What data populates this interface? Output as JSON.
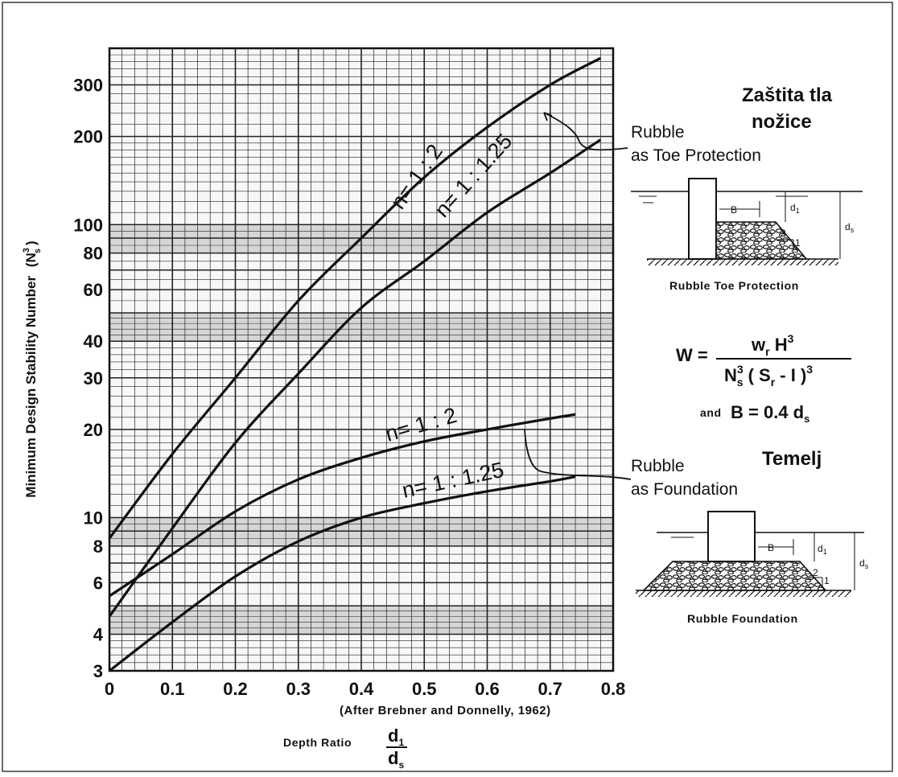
{
  "chart_data": {
    "type": "line",
    "title": "",
    "xlabel": "Depth Ratio",
    "xlabel_frac": {
      "num": "d",
      "num_sub": "1",
      "den": "d",
      "den_sub": "s"
    },
    "ylabel": "Minimum Design Stability Number",
    "ylabel_sym": {
      "base": "N",
      "sup": "3",
      "sub": "s"
    },
    "xlim": [
      0,
      0.8
    ],
    "ylim": [
      3,
      400
    ],
    "yscale": "log",
    "grid": true,
    "x_ticks": [
      "0",
      "0.1",
      "0.2",
      "0.3",
      "0.4",
      "0.5",
      "0.6",
      "0.7",
      "0.8"
    ],
    "y_ticks": [
      "3",
      "4",
      "6",
      "8",
      "10",
      "20",
      "30",
      "40",
      "60",
      "80",
      "100",
      "200",
      "300"
    ],
    "source_note": "(After Brebner and Donnelly, 1962)",
    "series": [
      {
        "name": "n= 1 : 2",
        "group": "Rubble as Toe Protection",
        "x": [
          0,
          0.1,
          0.2,
          0.3,
          0.4,
          0.5,
          0.6,
          0.7,
          0.78
        ],
        "y": [
          8.5,
          16.5,
          30,
          55,
          90,
          145,
          215,
          300,
          370
        ]
      },
      {
        "name": "n= 1 : 1.25",
        "group": "Rubble as Toe Protection",
        "x": [
          0,
          0.1,
          0.2,
          0.3,
          0.4,
          0.5,
          0.6,
          0.7,
          0.78
        ],
        "y": [
          4.6,
          9.2,
          18,
          31,
          52,
          75,
          110,
          150,
          195
        ]
      },
      {
        "name": "n= 1 : 2",
        "group": "Rubble as Foundation",
        "x": [
          0,
          0.1,
          0.2,
          0.3,
          0.4,
          0.5,
          0.6,
          0.7,
          0.74
        ],
        "y": [
          5.4,
          7.5,
          10.5,
          13.5,
          16,
          18.2,
          20,
          21.8,
          22.5
        ]
      },
      {
        "name": "n= 1 : 1.25",
        "group": "Rubble as Foundation",
        "x": [
          0,
          0.1,
          0.2,
          0.3,
          0.4,
          0.5,
          0.6,
          0.7,
          0.74
        ],
        "y": [
          3,
          4.4,
          6.3,
          8.3,
          10,
          11.2,
          12.3,
          13.3,
          13.8
        ]
      }
    ]
  },
  "annotations": {
    "toe_group": [
      "Rubble",
      "as Toe Protection"
    ],
    "foundation_group": [
      "Rubble",
      "as Foundation"
    ],
    "toe_title": [
      "Zaštita tla",
      "nožice"
    ],
    "foundation_title": "Temelj"
  },
  "diagram_toe": {
    "caption": "Rubble Toe Protection",
    "labels": {
      "b": "B",
      "d1": "d",
      "d1_sub": "1",
      "ds": "d",
      "ds_sub": "s",
      "slope_a": "2",
      "slope_b": "1"
    }
  },
  "diagram_foundation": {
    "caption": "Rubble Foundation",
    "labels": {
      "b": "B",
      "d1": "d",
      "d1_sub": "1",
      "ds": "d",
      "ds_sub": "s",
      "slope_a": "2",
      "slope_b": "1"
    }
  },
  "formula": {
    "lhs": "W =",
    "numerator": "w",
    "numerator_sub": "r",
    "numerator_rest": " H",
    "numerator_sup": "3",
    "denominator": "N",
    "denominator_sup": "3",
    "denominator_sub": "s",
    "denominator_rest": " ( S",
    "denominator_rest_sub": "r",
    "denominator_tail": " - I )",
    "denominator_tail_sup": "3",
    "and_text": "and",
    "b_eq": "B = 0.4 d",
    "b_eq_sub": "s"
  }
}
